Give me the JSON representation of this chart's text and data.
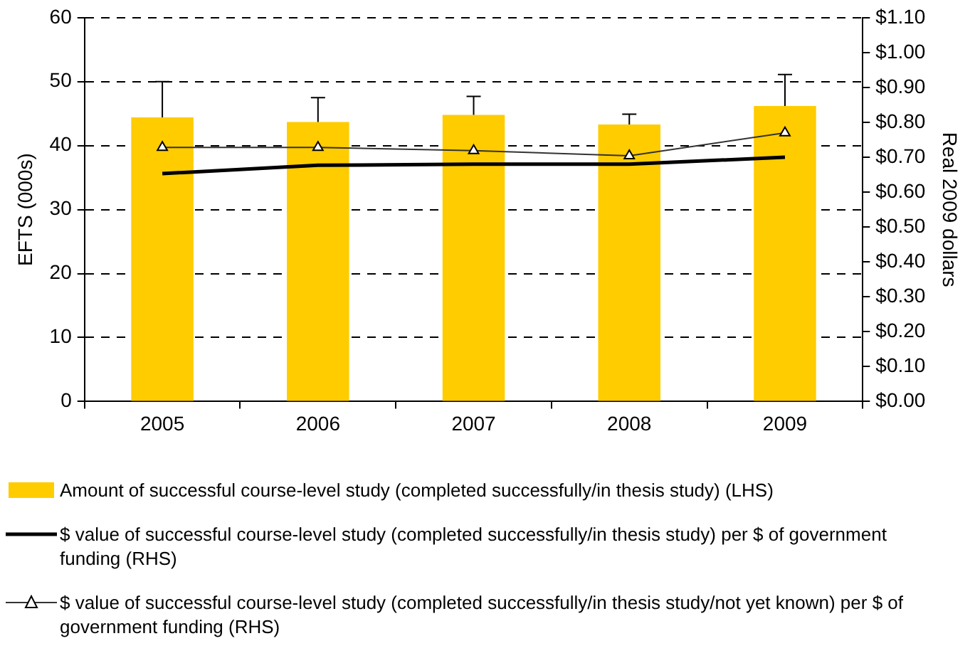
{
  "chart_data": {
    "type": "bar",
    "categories": [
      "2005",
      "2006",
      "2007",
      "2008",
      "2009"
    ],
    "ylabel": "EFTS (000s)",
    "y2label": "Real 2009 dollars",
    "ylim": [
      0,
      60
    ],
    "yticks": [
      0,
      10,
      20,
      30,
      40,
      50,
      60
    ],
    "y2lim": [
      0,
      1.1
    ],
    "y2ticks": [
      {
        "value": 0,
        "label": "$0.00"
      },
      {
        "value": 0.1,
        "label": "$0.10"
      },
      {
        "value": 0.2,
        "label": "$0.20"
      },
      {
        "value": 0.3,
        "label": "$0.30"
      },
      {
        "value": 0.4,
        "label": "$0.40"
      },
      {
        "value": 0.5,
        "label": "$0.50"
      },
      {
        "value": 0.6,
        "label": "$0.60"
      },
      {
        "value": 0.7,
        "label": "$0.70"
      },
      {
        "value": 0.8,
        "label": "$0.80"
      },
      {
        "value": 0.9,
        "label": "$0.90"
      },
      {
        "value": 1.0,
        "label": "$1.00"
      },
      {
        "value": 1.1,
        "label": "$1.10"
      }
    ],
    "grid": "y",
    "legend": "bottom",
    "line_style": "solid",
    "series": [
      {
        "name": "Amount of successful course-level study (completed successfully/in thesis study) (LHS)",
        "color": "#ffcc00",
        "values": [
          44.4,
          43.7,
          44.8,
          43.3,
          46.2
        ],
        "errors": [
          [
            44.4,
            50
          ],
          [
            43.7,
            47.5
          ],
          [
            44.8,
            47.7
          ],
          [
            43.3,
            44.9
          ],
          [
            46.2,
            51.1
          ]
        ]
      },
      {
        "name": "$ value of successful course-level study (completed successfully/in thesis study) per $ of government funding (RHS)",
        "type": "line",
        "axis": "y2",
        "color": "#000000",
        "marker": "none",
        "values": [
          0.653,
          0.677,
          0.68,
          0.68,
          0.7
        ]
      },
      {
        "name": "$ value of successful course-level study (completed successfully/in thesis study/not yet known) per $ of government funding (RHS)",
        "type": "line",
        "axis": "y2",
        "color": "#333333",
        "marker": "triangle",
        "values": [
          0.728,
          0.728,
          0.719,
          0.704,
          0.77
        ]
      }
    ]
  }
}
